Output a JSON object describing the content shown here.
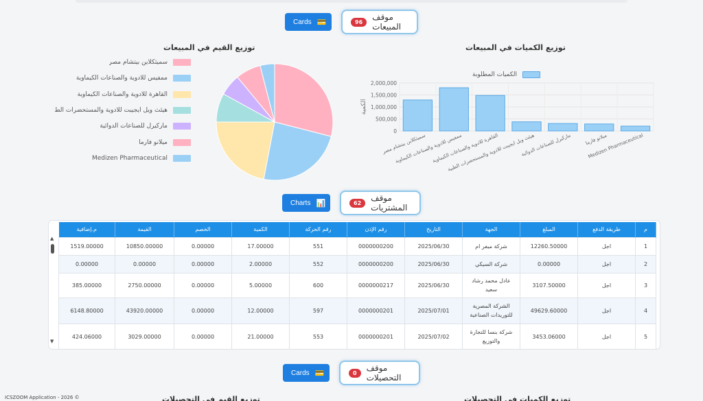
{
  "sales_section": {
    "button_label": "Cards",
    "title": "موقف المبيعات",
    "badge": "96"
  },
  "values_chart": {
    "title": "توزيع القيم في  المبيعات",
    "legend": [
      {
        "label": "سميثكلاين بيتشام مصر",
        "color": "#ffb1c1"
      },
      {
        "label": "ممفيس للادوية والصناعات الكيماوية",
        "color": "#9ad0f5"
      },
      {
        "label": "القاهرة للادوية والصناعات الكيماوية",
        "color": "#ffe6aa"
      },
      {
        "label": "هيئث ويل ايجيبت للادوية والمستحضرات الط",
        "color": "#a5dfdf"
      },
      {
        "label": "ماركيرل للصناعات الدوائية",
        "color": "#ccb2ff"
      },
      {
        "label": "ميلانو فارما",
        "color": "#ffb1c1"
      },
      {
        "label": "Medizen Pharmaceutical",
        "color": "#9ad0f5"
      }
    ]
  },
  "qty_chart": {
    "title": "توزيع الكميات في  المبيعات",
    "legend_label": "الكميات المطلوبة",
    "ylabel": "الكمية",
    "yticks": [
      "2,000,000",
      "1,500,000",
      "1,000,000",
      "500,000",
      "0"
    ],
    "bar_color": "#9ad0f5",
    "bar_border": "#5aa9e6"
  },
  "chart_data": [
    {
      "type": "pie",
      "title": "توزيع القيم في  المبيعات",
      "categories": [
        "سميثكلاين بيتشام مصر",
        "ممفيس للادوية والصناعات الكيماوية",
        "القاهرة للادوية والصناعات الكيماوية",
        "هيئث ويل ايجيبت للادوية والمستحضرات الط",
        "ماركيرل للصناعات الدوائية",
        "ميلانو فارما",
        "Medizen Pharmaceutical"
      ],
      "values": [
        29,
        24,
        22,
        8,
        6,
        7,
        4
      ],
      "colors": [
        "#ffb1c1",
        "#9ad0f5",
        "#ffe6aa",
        "#a5dfdf",
        "#ccb2ff",
        "#ffb1c1",
        "#9ad0f5"
      ],
      "legend": "left"
    },
    {
      "type": "bar",
      "title": "توزيع الكميات في  المبيعات",
      "categories": [
        "سميثكلاين بيتشام مصر",
        "ممفيس للادوية والصناعات الكيماوية",
        "القاهرة للادوية والصناعات الكيماوية",
        "هيئث ويل ايجيبت للادوية والمستحضرات الطبية",
        "ماركيرل للصناعات الدوائية",
        "ميلانو فارما",
        "Medizen Pharmaceutical"
      ],
      "series": [
        {
          "name": "الكميات المطلوبة",
          "values": [
            1290000,
            1800000,
            1480000,
            380000,
            310000,
            290000,
            200000
          ]
        }
      ],
      "ylabel": "الكمية",
      "ylim": [
        0,
        2000000
      ],
      "grid": true,
      "legend": "top"
    }
  ],
  "purchases_section": {
    "button_label": "Charts",
    "title": "موقف المشتريات",
    "badge": "62"
  },
  "table": {
    "columns": [
      "م",
      "طريقة الدفع",
      "المبلغ",
      "الجهة",
      "التاريخ",
      "رقم الإذن",
      "رقم الحركة",
      "الكمية",
      "الخصم",
      "القيمة",
      "م.إضافية"
    ],
    "rows": [
      [
        "1",
        "اجل",
        "12260.50000",
        "شركة ميفر ام",
        "2025/06/30",
        "0000000200",
        "551",
        "17.00000",
        "0.00000",
        "10850.00000",
        "1519.00000"
      ],
      [
        "2",
        "اجل",
        "0.00000",
        "شركة السيكي",
        "2025/06/30",
        "0000000200",
        "552",
        "2.00000",
        "0.00000",
        "0.00000",
        "0.00000"
      ],
      [
        "3",
        "اجل",
        "3107.50000",
        "عادل محمد رشاد سعيد",
        "2025/06/30",
        "0000000217",
        "600",
        "5.00000",
        "0.00000",
        "2750.00000",
        "385.00000"
      ],
      [
        "4",
        "اجل",
        "49629.60000",
        "الشركة المصرية للتوريدات الصناعية",
        "2025/07/01",
        "0000000201",
        "597",
        "12.00000",
        "0.00000",
        "43920.00000",
        "6148.80000"
      ],
      [
        "5",
        "اجل",
        "3453.06000",
        "شركة بنسا للتجارة والتوزيع",
        "2025/07/02",
        "0000000201",
        "553",
        "21.00000",
        "0.00000",
        "3029.00000",
        "424.06000"
      ]
    ]
  },
  "collections_section": {
    "button_label": "Cards",
    "title": "موقف التحصيلات",
    "badge": "0"
  },
  "collections_values_title": "توزيع القيم في  التحصيلات",
  "collections_qty_title": "توزيع الكميات في  التحصيلات",
  "footer": "ICSZOOM Application - 2026 ©"
}
